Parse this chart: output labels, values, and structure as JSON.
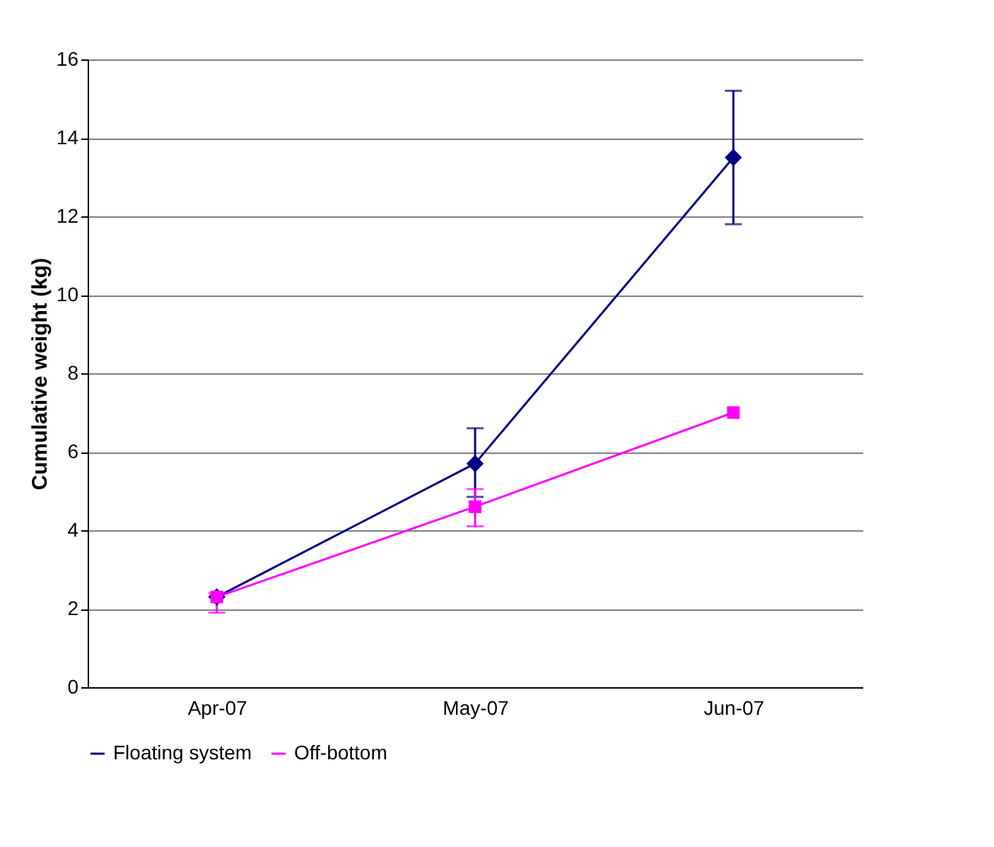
{
  "chart_data": {
    "type": "line",
    "ylabel": "Cumulative weight (kg)",
    "categories": [
      "Apr-07",
      "May-07",
      "Jun-07"
    ],
    "series": [
      {
        "name": "Floating system",
        "color": "#000080",
        "values": [
          2.3,
          5.7,
          13.5
        ],
        "errors": [
          null,
          [
            4.85,
            6.6
          ],
          [
            11.8,
            15.2
          ]
        ],
        "marker": "diamond"
      },
      {
        "name": "Off-bottom",
        "color": "#ff00ff",
        "values": [
          2.3,
          4.6,
          7.0
        ],
        "errors": [
          [
            1.9,
            2.4
          ],
          [
            4.1,
            5.05
          ],
          null
        ],
        "marker": "square"
      }
    ],
    "ylim": [
      0,
      16
    ],
    "yticks": [
      0,
      2,
      4,
      6,
      8,
      10,
      12,
      14,
      16
    ],
    "grid": "y",
    "legend": "bottom"
  }
}
